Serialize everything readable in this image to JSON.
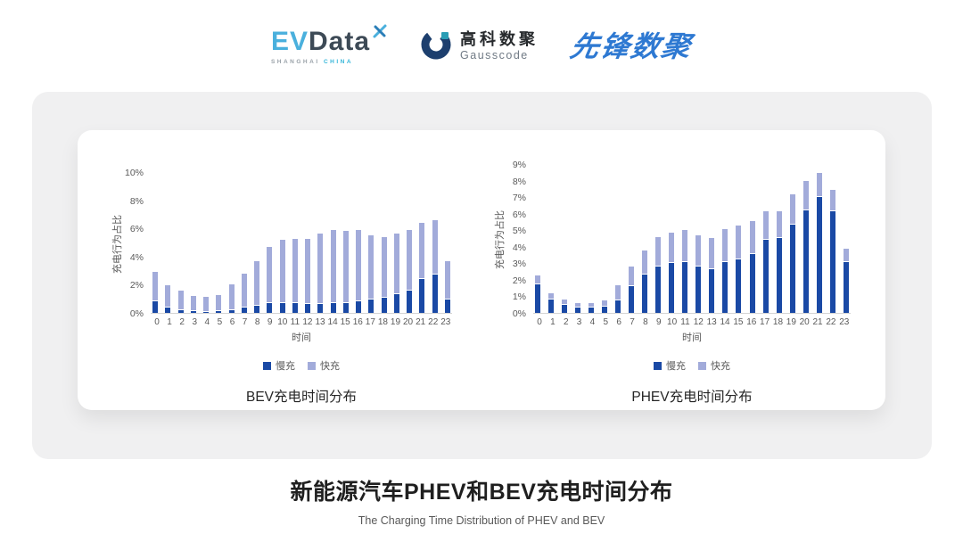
{
  "header": {
    "evdata": {
      "ev": "EV",
      "data": "Data",
      "sub_left": "SHANGHAI",
      "sub_right": "CHINA"
    },
    "gausscode": {
      "cn": "高科数聚",
      "en": "Gausscode"
    },
    "pioneer": {
      "text": "先锋数聚"
    }
  },
  "colors": {
    "slow": "#1a49a5",
    "fast": "#a2abda",
    "axis_line": "#d4d4d4",
    "tick_text": "#595959",
    "panel_bg": "#f0f0f1",
    "pioneer_blue": "#2e79d2"
  },
  "chart_data": [
    {
      "type": "bar",
      "stacked": true,
      "title": "BEV充电时间分布",
      "xlabel": "时间",
      "ylabel": "充电行为占比",
      "ylim": [
        0,
        10
      ],
      "yticks": [
        "0%",
        "2%",
        "4%",
        "6%",
        "8%",
        "10%"
      ],
      "grid": false,
      "legend_position": "bottom",
      "categories": [
        "0",
        "1",
        "2",
        "3",
        "4",
        "5",
        "6",
        "7",
        "8",
        "9",
        "10",
        "11",
        "12",
        "13",
        "14",
        "15",
        "16",
        "17",
        "18",
        "19",
        "20",
        "21",
        "22",
        "23"
      ],
      "series": [
        {
          "name": "慢充",
          "color": "#1a49a5",
          "values": [
            0.8,
            0.38,
            0.2,
            0.1,
            0.08,
            0.1,
            0.17,
            0.4,
            0.5,
            0.7,
            0.68,
            0.72,
            0.63,
            0.65,
            0.72,
            0.7,
            0.85,
            0.97,
            1.05,
            1.3,
            1.6,
            2.4,
            2.75,
            0.97
          ]
        },
        {
          "name": "快充",
          "color": "#a2abda",
          "values": [
            2.05,
            1.52,
            1.3,
            1.05,
            1.02,
            1.1,
            1.78,
            2.35,
            3.1,
            3.9,
            4.47,
            4.48,
            4.57,
            4.95,
            5.08,
            5.05,
            4.95,
            4.48,
            4.25,
            4.3,
            4.25,
            3.9,
            3.75,
            2.63
          ]
        }
      ]
    },
    {
      "type": "bar",
      "stacked": true,
      "title": "PHEV充电时间分布",
      "xlabel": "时间",
      "ylabel": "充电行为占比",
      "ylim": [
        0,
        9
      ],
      "yticks": [
        "0%",
        "1%",
        "2%",
        "3%",
        "4%",
        "5%",
        "6%",
        "7%",
        "8%",
        "9%"
      ],
      "grid": false,
      "legend_position": "bottom",
      "categories": [
        "0",
        "1",
        "2",
        "3",
        "4",
        "5",
        "6",
        "7",
        "8",
        "9",
        "10",
        "11",
        "12",
        "13",
        "14",
        "15",
        "16",
        "17",
        "18",
        "19",
        "20",
        "21",
        "22",
        "23"
      ],
      "series": [
        {
          "name": "慢充",
          "color": "#1a49a5",
          "values": [
            1.75,
            0.8,
            0.5,
            0.3,
            0.3,
            0.37,
            0.76,
            1.62,
            2.3,
            2.82,
            3.0,
            3.05,
            2.78,
            2.64,
            3.05,
            3.26,
            3.58,
            4.4,
            4.53,
            5.36,
            6.2,
            7.0,
            6.17,
            3.05
          ]
        },
        {
          "name": "快充",
          "color": "#a2abda",
          "values": [
            0.45,
            0.35,
            0.25,
            0.25,
            0.25,
            0.33,
            0.84,
            1.13,
            1.4,
            1.73,
            1.8,
            1.9,
            1.87,
            1.86,
            1.95,
            1.99,
            1.92,
            1.7,
            1.57,
            1.74,
            1.75,
            1.4,
            1.23,
            0.8
          ]
        }
      ]
    }
  ],
  "footer": {
    "title": "新能源汽车PHEV和BEV充电时间分布",
    "subtitle": "The Charging Time Distribution of PHEV and BEV"
  }
}
